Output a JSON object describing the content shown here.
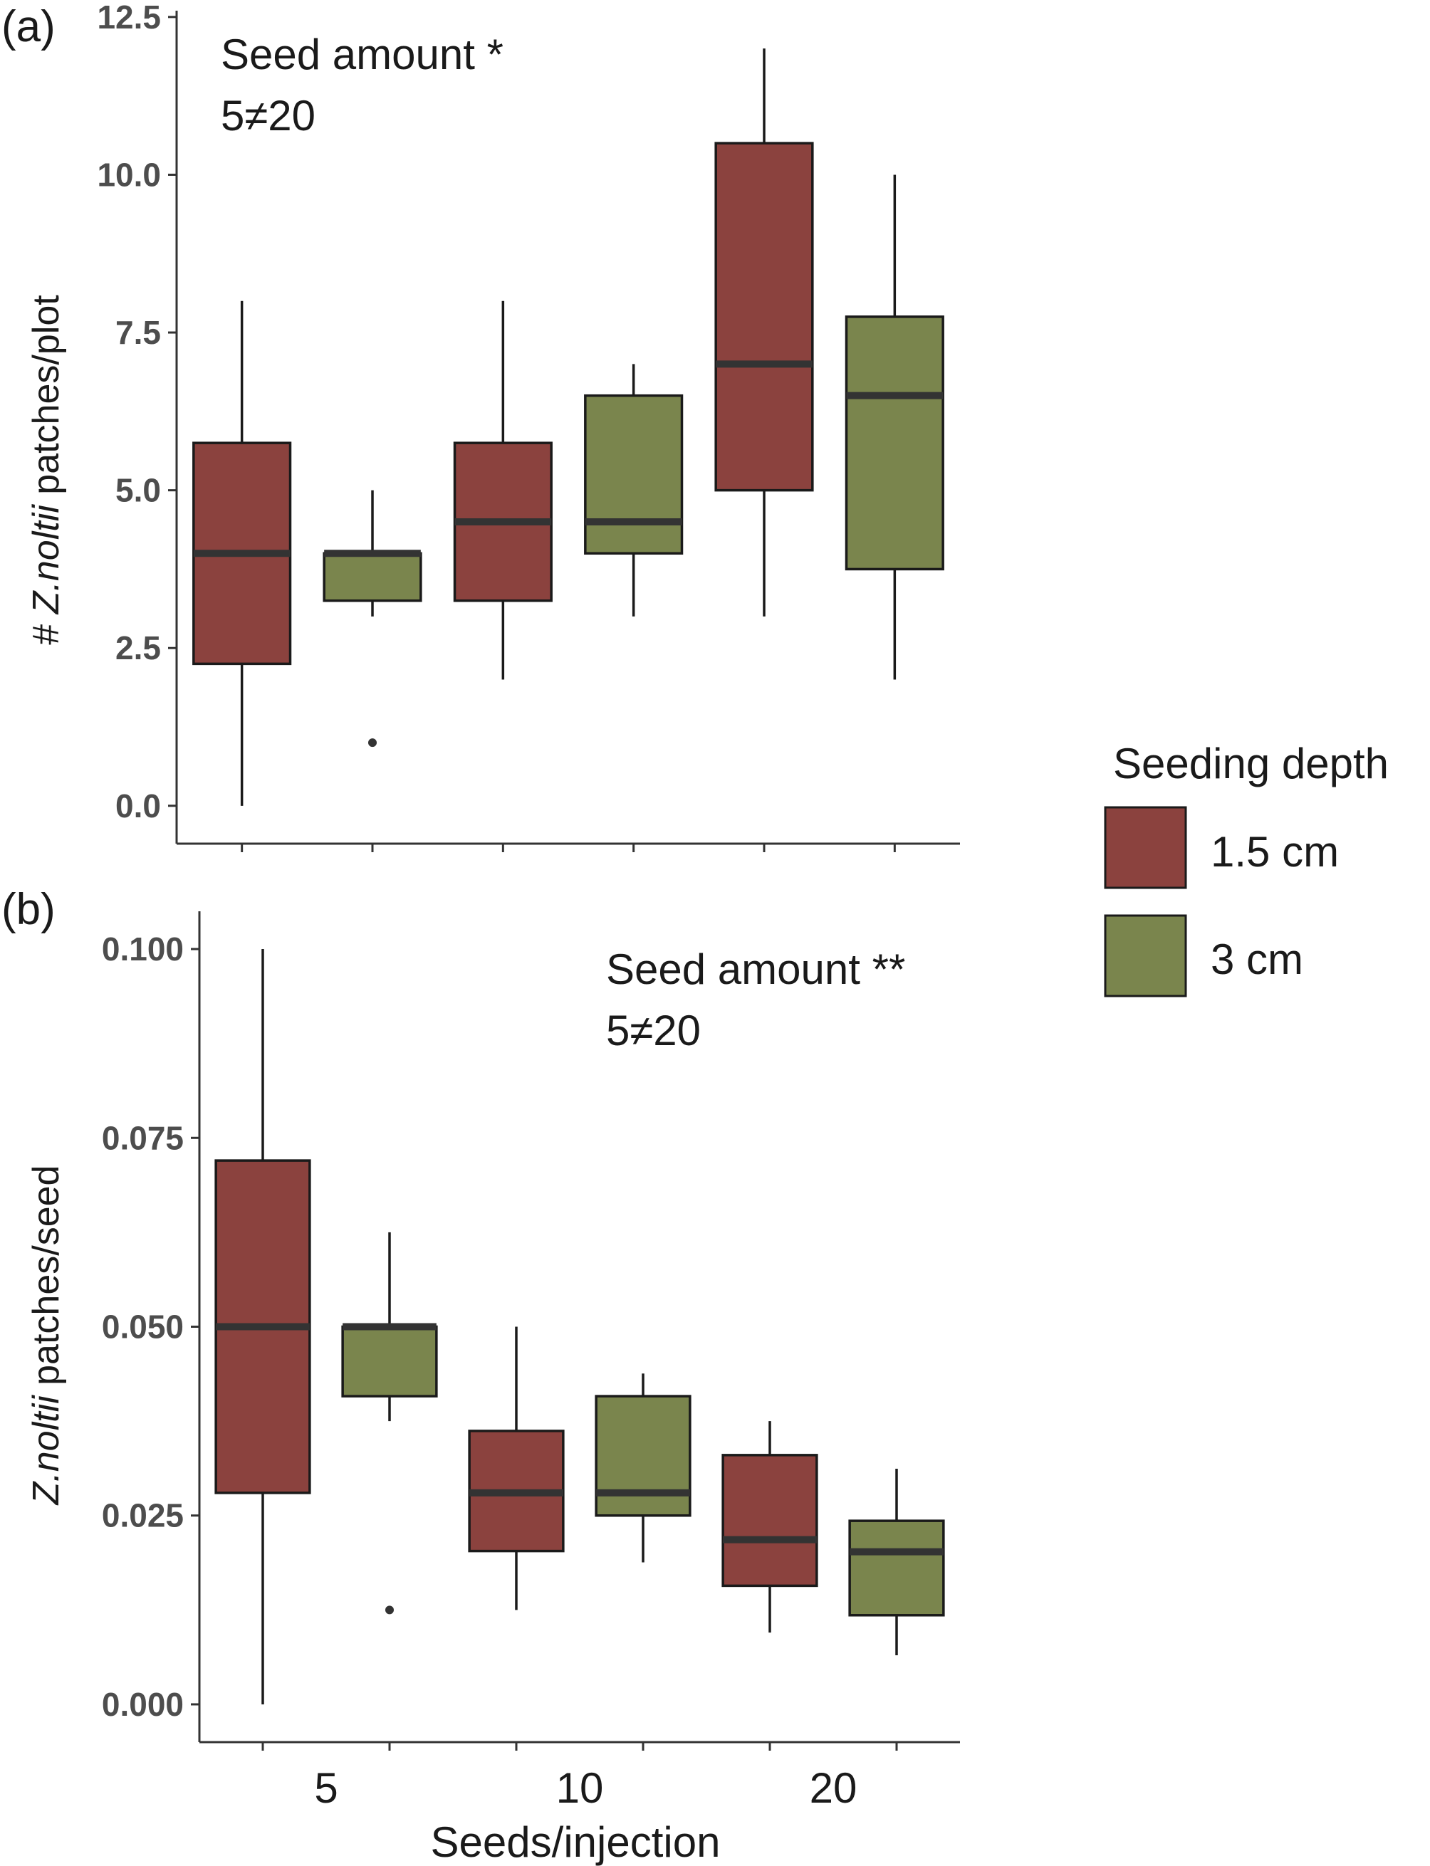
{
  "colors": {
    "depth_1_5": "#8b423e",
    "depth_3": "#7a854d",
    "box_stroke": "#1a1a1a",
    "median": "#333333",
    "axis": "#333333",
    "tick_label": "#4d4d4d"
  },
  "legend": {
    "title": "Seeding depth",
    "items": [
      {
        "label": "1.5 cm",
        "color_key": "depth_1_5"
      },
      {
        "label": "3 cm",
        "color_key": "depth_3"
      }
    ]
  },
  "x_axis_label": "Seeds/injection",
  "chart_data": [
    {
      "type": "box",
      "panel_label": "(a)",
      "annotation": {
        "line1": "Seed amount *",
        "line2": "5≠20"
      },
      "ylabel": {
        "prefix": "# ",
        "species": "Z.noltii",
        "suffix": " patches/plot"
      },
      "ylim": [
        -0.6,
        12.6
      ],
      "yticks": [
        0.0,
        2.5,
        5.0,
        7.5,
        10.0,
        12.5
      ],
      "ytick_labels": [
        "0.0",
        "2.5",
        "5.0",
        "7.5",
        "10.0",
        "12.5"
      ],
      "categories": [
        "5",
        "10",
        "20"
      ],
      "series": [
        {
          "name": "1.5 cm",
          "boxes": [
            {
              "category": "5",
              "whisker_low": 0.0,
              "q1": 2.25,
              "median": 4.0,
              "q3": 5.75,
              "whisker_high": 8.0,
              "outliers": []
            },
            {
              "category": "10",
              "whisker_low": 2.0,
              "q1": 3.25,
              "median": 4.5,
              "q3": 5.75,
              "whisker_high": 8.0,
              "outliers": []
            },
            {
              "category": "20",
              "whisker_low": 3.0,
              "q1": 5.0,
              "median": 7.0,
              "q3": 10.5,
              "whisker_high": 12.0,
              "outliers": []
            }
          ]
        },
        {
          "name": "3 cm",
          "boxes": [
            {
              "category": "5",
              "whisker_low": 3.0,
              "q1": 3.25,
              "median": 4.0,
              "q3": 4.0,
              "whisker_high": 5.0,
              "outliers": [
                1.0
              ]
            },
            {
              "category": "10",
              "whisker_low": 3.0,
              "q1": 4.0,
              "median": 4.5,
              "q3": 6.5,
              "whisker_high": 7.0,
              "outliers": []
            },
            {
              "category": "20",
              "whisker_low": 2.0,
              "q1": 3.75,
              "median": 6.5,
              "q3": 7.75,
              "whisker_high": 10.0,
              "outliers": []
            }
          ]
        }
      ]
    },
    {
      "type": "box",
      "panel_label": "(b)",
      "annotation": {
        "line1": "Seed amount **",
        "line2": "5≠20"
      },
      "ylabel": {
        "prefix": "",
        "species": "Z.noltii",
        "suffix": " patches/seed"
      },
      "ylim": [
        -0.005,
        0.105
      ],
      "yticks": [
        0.0,
        0.025,
        0.05,
        0.075,
        0.1
      ],
      "ytick_labels": [
        "0.000",
        "0.025",
        "0.050",
        "0.075",
        "0.100"
      ],
      "categories": [
        "5",
        "10",
        "20"
      ],
      "series": [
        {
          "name": "1.5 cm",
          "boxes": [
            {
              "category": "5",
              "whisker_low": 0.0,
              "q1": 0.028,
              "median": 0.05,
              "q3": 0.072,
              "whisker_high": 0.1,
              "outliers": []
            },
            {
              "category": "10",
              "whisker_low": 0.0125,
              "q1": 0.0203,
              "median": 0.028,
              "q3": 0.0362,
              "whisker_high": 0.05,
              "outliers": []
            },
            {
              "category": "20",
              "whisker_low": 0.0095,
              "q1": 0.0157,
              "median": 0.0218,
              "q3": 0.033,
              "whisker_high": 0.0375,
              "outliers": []
            }
          ]
        },
        {
          "name": "3 cm",
          "boxes": [
            {
              "category": "5",
              "whisker_low": 0.0375,
              "q1": 0.0408,
              "median": 0.05,
              "q3": 0.05,
              "whisker_high": 0.0625,
              "outliers": [
                0.0125
              ]
            },
            {
              "category": "10",
              "whisker_low": 0.0188,
              "q1": 0.025,
              "median": 0.028,
              "q3": 0.0408,
              "whisker_high": 0.0438,
              "outliers": []
            },
            {
              "category": "20",
              "whisker_low": 0.0065,
              "q1": 0.0118,
              "median": 0.0202,
              "q3": 0.0243,
              "whisker_high": 0.0312,
              "outliers": []
            }
          ]
        }
      ]
    }
  ]
}
